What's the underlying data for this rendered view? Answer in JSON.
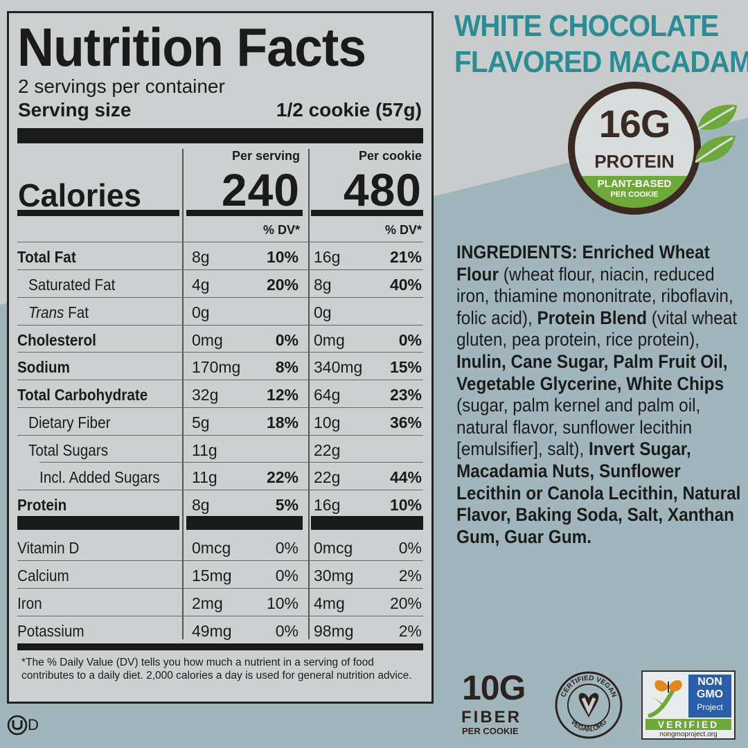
{
  "panel": {
    "title": "Nutrition Facts",
    "servings": "2 servings per container",
    "serving_size_label": "Serving size",
    "serving_size_value": "1/2 cookie (57g)",
    "per_serving_label": "Per serving",
    "per_cookie_label": "Per cookie",
    "calories_label": "Calories",
    "calories_per_serving": "240",
    "calories_per_cookie": "480",
    "dv_label": "% DV*",
    "rows": [
      {
        "name": "Total Fat",
        "a1": "8g",
        "p1": "10%",
        "a2": "16g",
        "p2": "21%"
      },
      {
        "name": "Saturated Fat",
        "a1": "4g",
        "p1": "20%",
        "a2": "8g",
        "p2": "40%"
      },
      {
        "name_italic": "Trans",
        "name_rest": " Fat",
        "a1": "0g",
        "p1": "",
        "a2": "0g",
        "p2": ""
      },
      {
        "name": "Cholesterol",
        "a1": "0mg",
        "p1": "0%",
        "a2": "0mg",
        "p2": "0%"
      },
      {
        "name": "Sodium",
        "a1": "170mg",
        "p1": "8%",
        "a2": "340mg",
        "p2": "15%"
      },
      {
        "name": "Total Carbohydrate",
        "a1": "32g",
        "p1": "12%",
        "a2": "64g",
        "p2": "23%"
      },
      {
        "name": "Dietary Fiber",
        "a1": "5g",
        "p1": "18%",
        "a2": "10g",
        "p2": "36%"
      },
      {
        "name": "Total Sugars",
        "a1": "11g",
        "p1": "",
        "a2": "22g",
        "p2": ""
      },
      {
        "name": "Incl. Added Sugars",
        "a1": "11g",
        "p1": "22%",
        "a2": "22g",
        "p2": "44%"
      },
      {
        "name": "Protein",
        "a1": "8g",
        "p1": "5%",
        "a2": "16g",
        "p2": "10%"
      },
      {
        "name": "Vitamin D",
        "a1": "0mcg",
        "p1": "0%",
        "a2": "0mcg",
        "p2": "0%"
      },
      {
        "name": "Calcium",
        "a1": "15mg",
        "p1": "0%",
        "a2": "30mg",
        "p2": "2%"
      },
      {
        "name": "Iron",
        "a1": "2mg",
        "p1": "10%",
        "a2": "4mg",
        "p2": "20%"
      },
      {
        "name": "Potassium",
        "a1": "49mg",
        "p1": "0%",
        "a2": "98mg",
        "p2": "2%"
      }
    ],
    "footnote": "*The % Daily Value (DV) tells you how much a nutrient in a serving of food contributes to a daily diet. 2,000 calories a day is used for general nutrition advice."
  },
  "flavor": {
    "line1": "WHITE CHOCOLATE",
    "line2": "FLAVORED MACADAMIA"
  },
  "badge": {
    "amount": "16G",
    "label": "PROTEIN",
    "sub1": "PLANT-BASED",
    "sub2": "PER COOKIE"
  },
  "ingredients": [
    {
      "b": "INGREDIENTS: Enriched Wheat Flour",
      "t": " (wheat flour, niacin, reduced iron, thiamine mononitrate, riboflavin, folic acid), "
    },
    {
      "b": "Protein Blend",
      "t": " (vital wheat gluten, pea protein, rice protein), "
    },
    {
      "b": "Inulin, Cane Sugar, Palm Fruit Oil, Vegetable Glycerine, White Chips",
      "t": " (sugar, palm kernel and palm oil, natural flavor, sunflower lecithin [emulsifier], salt), "
    },
    {
      "b": "Invert Sugar, Macadamia Nuts, Sunflower Lecithin or Canola Lecithin, Natural Flavor, Baking Soda, Salt, Xanthan Gum, Guar Gum.",
      "t": ""
    }
  ],
  "fiber": {
    "amount": "10G",
    "label": "FIBER",
    "sub": "PER COOKIE"
  },
  "vegan": {
    "top": "CERTIFIED VEGAN",
    "bottom": "VEGAN.ORG"
  },
  "gmo": {
    "l1": "NON",
    "l2": "GMO",
    "l3": "Project",
    "l4": "VERIFIED",
    "l5": "nongmoproject.org"
  },
  "kosher": {
    "mark": "D"
  },
  "colors": {
    "teal": "#2b8c93",
    "lower_bg": "#a0b6bc",
    "brown": "#3a2a23",
    "green": "#6fa83a"
  }
}
